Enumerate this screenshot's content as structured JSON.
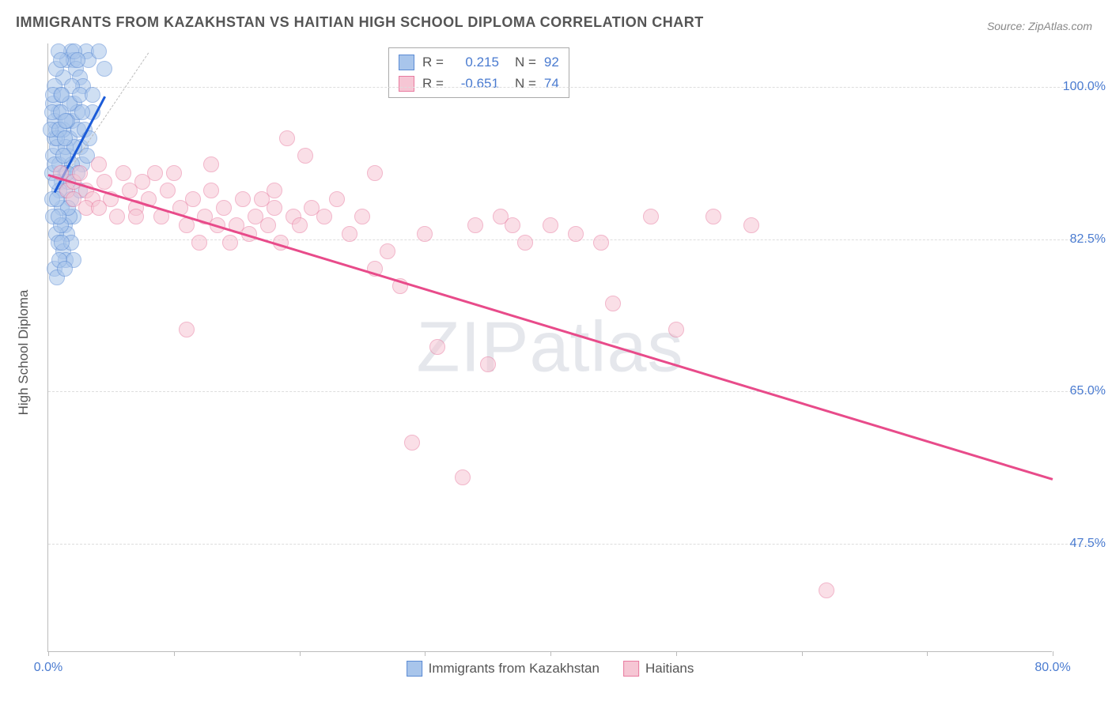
{
  "title": "IMMIGRANTS FROM KAZAKHSTAN VS HAITIAN HIGH SCHOOL DIPLOMA CORRELATION CHART",
  "source": "Source: ZipAtlas.com",
  "ylabel": "High School Diploma",
  "watermark_a": "ZIP",
  "watermark_b": "atlas",
  "chart": {
    "type": "scatter",
    "xlim": [
      0,
      80
    ],
    "ylim": [
      35,
      105
    ],
    "xtick_positions": [
      0,
      10,
      20,
      30,
      40,
      50,
      60,
      70,
      80
    ],
    "xtick_labels": {
      "0": "0.0%",
      "80": "80.0%"
    },
    "ytick_positions": [
      47.5,
      65.0,
      82.5,
      100.0
    ],
    "ytick_labels": [
      "47.5%",
      "65.0%",
      "82.5%",
      "100.0%"
    ],
    "background_color": "#ffffff",
    "grid_color": "#dddddd",
    "marker_radius": 10,
    "marker_opacity": 0.55,
    "tick_label_color": "#4a7bd0",
    "axis_color": "#bbbbbb",
    "series": [
      {
        "name": "Immigrants from Kazakhstan",
        "color_fill": "#a8c5eb",
        "color_stroke": "#5b8bd4",
        "R": "0.215",
        "N": "92",
        "trend": {
          "x1": 0.5,
          "y1": 88,
          "x2": 4.5,
          "y2": 99,
          "color": "#1b5bd8",
          "width": 3
        },
        "ref_dashed": {
          "x1": 0.5,
          "y1": 88,
          "x2": 8,
          "y2": 104,
          "color": "#bbbbbb"
        },
        "points": [
          [
            0.3,
            90
          ],
          [
            0.4,
            92
          ],
          [
            0.5,
            94
          ],
          [
            0.6,
            95
          ],
          [
            0.8,
            97
          ],
          [
            1.0,
            99
          ],
          [
            1.2,
            101
          ],
          [
            1.5,
            103
          ],
          [
            1.8,
            104
          ],
          [
            2.0,
            103
          ],
          [
            2.2,
            102
          ],
          [
            2.5,
            101
          ],
          [
            2.8,
            100
          ],
          [
            3.0,
            104
          ],
          [
            3.2,
            103
          ],
          [
            3.5,
            97
          ],
          [
            0.7,
            93
          ],
          [
            0.9,
            91
          ],
          [
            1.1,
            89
          ],
          [
            1.3,
            88
          ],
          [
            1.4,
            90
          ],
          [
            1.6,
            92
          ],
          [
            1.7,
            94
          ],
          [
            1.9,
            96
          ],
          [
            2.1,
            98
          ],
          [
            2.3,
            97
          ],
          [
            2.4,
            95
          ],
          [
            2.6,
            93
          ],
          [
            2.7,
            91
          ],
          [
            0.5,
            100
          ],
          [
            0.6,
            102
          ],
          [
            0.8,
            104
          ],
          [
            1.0,
            103
          ],
          [
            1.2,
            95
          ],
          [
            1.4,
            93
          ],
          [
            1.6,
            89
          ],
          [
            1.8,
            87
          ],
          [
            2.0,
            85
          ],
          [
            0.4,
            98
          ],
          [
            0.5,
            96
          ],
          [
            0.7,
            94
          ],
          [
            0.9,
            88
          ],
          [
            1.1,
            86
          ],
          [
            1.3,
            84
          ],
          [
            1.5,
            83
          ],
          [
            1.7,
            85
          ],
          [
            1.9,
            91
          ],
          [
            2.1,
            93
          ],
          [
            2.3,
            90
          ],
          [
            2.5,
            88
          ],
          [
            0.3,
            87
          ],
          [
            0.4,
            85
          ],
          [
            0.6,
            83
          ],
          [
            0.8,
            82
          ],
          [
            1.0,
            84
          ],
          [
            1.2,
            81
          ],
          [
            1.4,
            80
          ],
          [
            1.6,
            86
          ],
          [
            1.8,
            82
          ],
          [
            2.0,
            80
          ],
          [
            0.5,
            79
          ],
          [
            0.7,
            78
          ],
          [
            0.9,
            80
          ],
          [
            1.1,
            82
          ],
          [
            1.3,
            79
          ],
          [
            1.5,
            96
          ],
          [
            1.7,
            98
          ],
          [
            1.9,
            100
          ],
          [
            2.1,
            104
          ],
          [
            2.3,
            103
          ],
          [
            2.5,
            99
          ],
          [
            2.7,
            97
          ],
          [
            2.9,
            95
          ],
          [
            3.1,
            92
          ],
          [
            3.3,
            94
          ],
          [
            3.5,
            99
          ],
          [
            0.2,
            95
          ],
          [
            0.3,
            97
          ],
          [
            0.4,
            99
          ],
          [
            0.5,
            91
          ],
          [
            0.6,
            89
          ],
          [
            0.7,
            87
          ],
          [
            0.8,
            85
          ],
          [
            0.9,
            95
          ],
          [
            1.0,
            97
          ],
          [
            1.1,
            99
          ],
          [
            1.2,
            92
          ],
          [
            1.3,
            94
          ],
          [
            1.4,
            96
          ],
          [
            1.5,
            90
          ],
          [
            4.0,
            104
          ],
          [
            4.5,
            102
          ]
        ]
      },
      {
        "name": "Haitians",
        "color_fill": "#f6c6d4",
        "color_stroke": "#e87ba0",
        "R": "-0.651",
        "N": "74",
        "trend": {
          "x1": 0,
          "y1": 90,
          "x2": 80,
          "y2": 55,
          "color": "#e84b8a",
          "width": 3
        },
        "points": [
          [
            1,
            90
          ],
          [
            1.5,
            88
          ],
          [
            2,
            89
          ],
          [
            2.5,
            90
          ],
          [
            3,
            88
          ],
          [
            3.5,
            87
          ],
          [
            4,
            91
          ],
          [
            4.5,
            89
          ],
          [
            5,
            87
          ],
          [
            5.5,
            85
          ],
          [
            6,
            90
          ],
          [
            6.5,
            88
          ],
          [
            7,
            86
          ],
          [
            7.5,
            89
          ],
          [
            8,
            87
          ],
          [
            8.5,
            90
          ],
          [
            9,
            85
          ],
          [
            9.5,
            88
          ],
          [
            10,
            90
          ],
          [
            10.5,
            86
          ],
          [
            11,
            84
          ],
          [
            11.5,
            87
          ],
          [
            12,
            82
          ],
          [
            12.5,
            85
          ],
          [
            13,
            88
          ],
          [
            13.5,
            84
          ],
          [
            14,
            86
          ],
          [
            14.5,
            82
          ],
          [
            15,
            84
          ],
          [
            15.5,
            87
          ],
          [
            16,
            83
          ],
          [
            16.5,
            85
          ],
          [
            17,
            87
          ],
          [
            17.5,
            84
          ],
          [
            18,
            86
          ],
          [
            18.5,
            82
          ],
          [
            19,
            94
          ],
          [
            19.5,
            85
          ],
          [
            20,
            84
          ],
          [
            20.5,
            92
          ],
          [
            21,
            86
          ],
          [
            22,
            85
          ],
          [
            23,
            87
          ],
          [
            24,
            83
          ],
          [
            25,
            85
          ],
          [
            26,
            79
          ],
          [
            27,
            81
          ],
          [
            28,
            77
          ],
          [
            29,
            59
          ],
          [
            30,
            83
          ],
          [
            31,
            70
          ],
          [
            33,
            55
          ],
          [
            34,
            84
          ],
          [
            35,
            68
          ],
          [
            36,
            85
          ],
          [
            37,
            84
          ],
          [
            38,
            82
          ],
          [
            40,
            84
          ],
          [
            42,
            83
          ],
          [
            44,
            82
          ],
          [
            45,
            75
          ],
          [
            48,
            85
          ],
          [
            50,
            72
          ],
          [
            53,
            85
          ],
          [
            56,
            84
          ],
          [
            11,
            72
          ],
          [
            7,
            85
          ],
          [
            3,
            86
          ],
          [
            62,
            42
          ],
          [
            26,
            90
          ],
          [
            2,
            87
          ],
          [
            4,
            86
          ],
          [
            13,
            91
          ],
          [
            18,
            88
          ]
        ]
      }
    ]
  },
  "stat_legend": {
    "rows": [
      {
        "swatch_fill": "#a8c5eb",
        "swatch_stroke": "#5b8bd4",
        "R": "0.215",
        "N": "92"
      },
      {
        "swatch_fill": "#f6c6d4",
        "swatch_stroke": "#e87ba0",
        "R": "-0.651",
        "N": "74"
      }
    ]
  },
  "bottom_legend": {
    "items": [
      {
        "swatch_fill": "#a8c5eb",
        "swatch_stroke": "#5b8bd4",
        "label": "Immigrants from Kazakhstan"
      },
      {
        "swatch_fill": "#f6c6d4",
        "swatch_stroke": "#e87ba0",
        "label": "Haitians"
      }
    ]
  }
}
